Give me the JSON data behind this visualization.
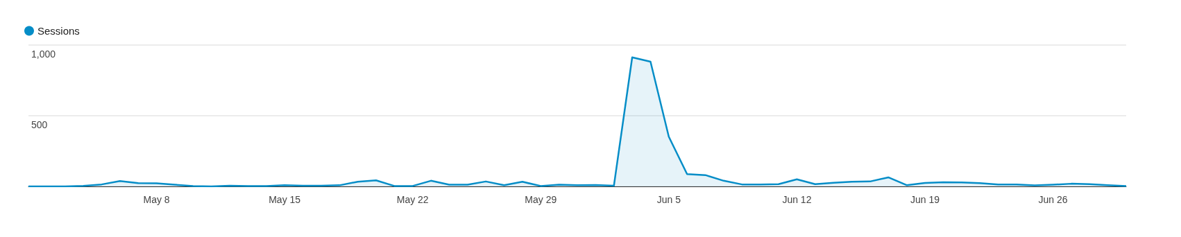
{
  "chart_data": {
    "type": "area",
    "categories": [
      null,
      null,
      null,
      null,
      null,
      null,
      null,
      "May 8",
      null,
      null,
      null,
      null,
      null,
      null,
      "May 15",
      null,
      null,
      null,
      null,
      null,
      null,
      "May 22",
      null,
      null,
      null,
      null,
      null,
      null,
      "May 29",
      null,
      null,
      null,
      null,
      null,
      null,
      "Jun 5",
      null,
      null,
      null,
      null,
      null,
      null,
      "Jun 12",
      null,
      null,
      null,
      null,
      null,
      null,
      "Jun 19",
      null,
      null,
      null,
      null,
      null,
      null,
      "Jun 26",
      null,
      null,
      null,
      null
    ],
    "series": [
      {
        "name": "Sessions",
        "color": "#058dc7",
        "values": [
          0,
          0,
          0,
          4,
          14,
          38,
          23,
          22,
          12,
          3,
          0,
          5,
          3,
          3,
          8,
          5,
          5,
          8,
          33,
          43,
          3,
          3,
          40,
          12,
          12,
          35,
          9,
          33,
          3,
          12,
          9,
          10,
          5,
          913,
          882,
          352,
          87,
          80,
          40,
          14,
          14,
          16,
          50,
          16,
          26,
          33,
          35,
          64,
          9,
          24,
          30,
          28,
          23,
          14,
          14,
          7,
          12,
          19,
          16,
          9,
          3
        ]
      }
    ],
    "ylim": [
      0,
      1000
    ],
    "yticks": [
      {
        "value": 0,
        "label": null
      },
      500,
      {
        "value": 1000,
        "label": "1,000"
      }
    ],
    "grid": "y",
    "legend": "top left",
    "marker": "none"
  }
}
